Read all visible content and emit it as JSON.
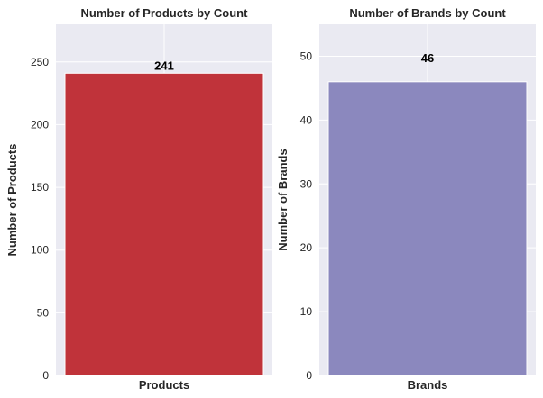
{
  "chart_data": [
    {
      "type": "bar",
      "title": "Number of Products by Count",
      "xlabel": "",
      "ylabel": "Number of Products",
      "categories": [
        "Products"
      ],
      "values": [
        241
      ],
      "data_labels": [
        "241"
      ],
      "ylim": [
        0,
        280
      ],
      "yticks": [
        0,
        50,
        100,
        150,
        200,
        250
      ],
      "color": "#c0333a",
      "grid": true
    },
    {
      "type": "bar",
      "title": "Number of Brands by Count",
      "xlabel": "",
      "ylabel": "Number of Brands",
      "categories": [
        "Brands"
      ],
      "values": [
        46
      ],
      "data_labels": [
        "46"
      ],
      "ylim": [
        0,
        55
      ],
      "yticks": [
        0,
        10,
        20,
        30,
        40,
        50
      ],
      "color": "#8b88be",
      "grid": true
    }
  ]
}
